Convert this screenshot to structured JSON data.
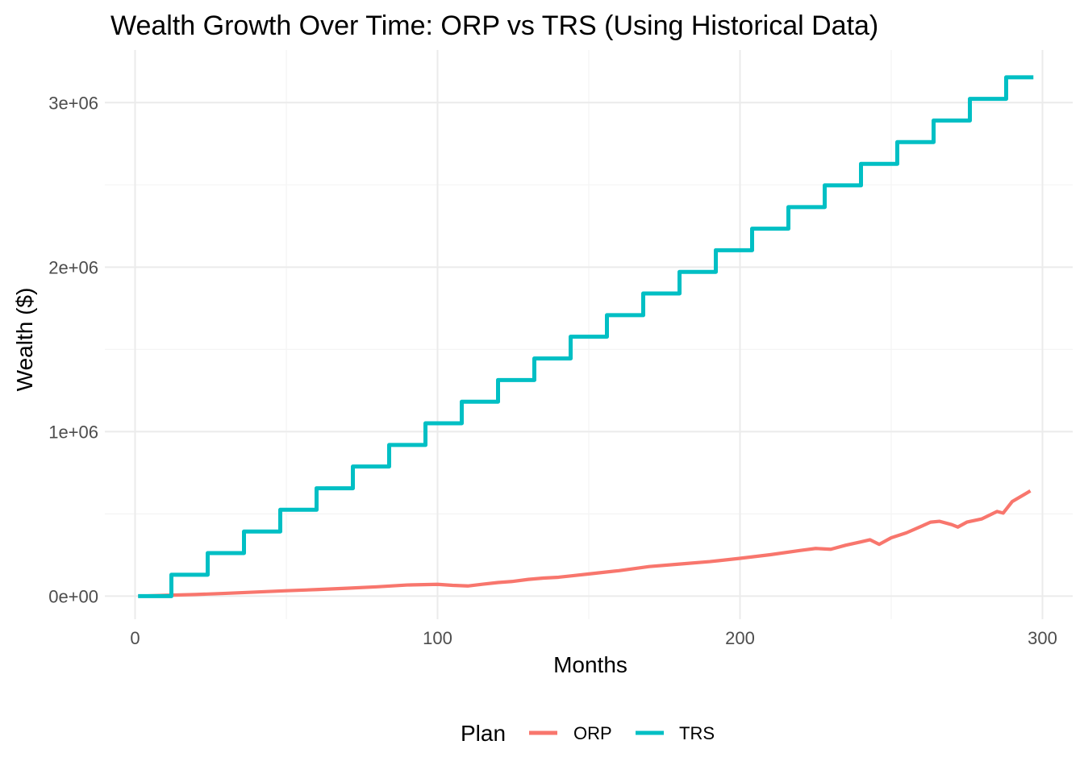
{
  "chart_data": {
    "type": "line",
    "title": "Wealth Growth Over Time: ORP vs TRS (Using Historical Data)",
    "xlabel": "Months",
    "ylabel": "Wealth ($)",
    "xlim": [
      -10,
      310
    ],
    "ylim": [
      -140000,
      3320000
    ],
    "x_ticks": [
      0,
      100,
      200,
      300
    ],
    "x_tick_labels": [
      "0",
      "100",
      "200",
      "300"
    ],
    "y_ticks": [
      0,
      1000000,
      2000000,
      3000000
    ],
    "y_tick_labels": [
      "0e+00",
      "1e+06",
      "2e+06",
      "3e+06"
    ],
    "grid": true,
    "legend": {
      "title": "Plan",
      "position": "bottom"
    },
    "series": [
      {
        "name": "ORP",
        "color": "#F8766D",
        "x": [
          1,
          10,
          20,
          30,
          40,
          50,
          60,
          70,
          80,
          90,
          100,
          105,
          110,
          115,
          120,
          125,
          130,
          135,
          140,
          145,
          150,
          160,
          170,
          180,
          190,
          200,
          210,
          220,
          225,
          230,
          235,
          240,
          243,
          246,
          250,
          255,
          260,
          263,
          266,
          270,
          272,
          275,
          280,
          285,
          287,
          290,
          296
        ],
        "values": [
          0,
          5000,
          10000,
          17000,
          25000,
          33000,
          40000,
          48000,
          57000,
          68000,
          72000,
          66000,
          62000,
          73000,
          83000,
          90000,
          102000,
          110000,
          115000,
          125000,
          135000,
          155000,
          180000,
          195000,
          210000,
          230000,
          252000,
          278000,
          290000,
          285000,
          310000,
          330000,
          343000,
          315000,
          355000,
          385000,
          425000,
          450000,
          455000,
          435000,
          420000,
          450000,
          470000,
          515000,
          505000,
          575000,
          640000
        ]
      },
      {
        "name": "TRS",
        "color": "#00BFC4",
        "step": "hv",
        "x": [
          1,
          12,
          24,
          36,
          48,
          60,
          72,
          84,
          96,
          108,
          120,
          132,
          144,
          156,
          168,
          180,
          192,
          204,
          216,
          228,
          240,
          252,
          264,
          276,
          288,
          297
        ],
        "values": [
          0,
          130000,
          262000,
          393000,
          525000,
          656000,
          788000,
          919000,
          1051000,
          1182000,
          1314000,
          1445000,
          1577000,
          1708000,
          1840000,
          1971000,
          2103000,
          2234000,
          2365000,
          2497000,
          2628000,
          2760000,
          2891000,
          3023000,
          3154000,
          3154000
        ]
      }
    ]
  }
}
